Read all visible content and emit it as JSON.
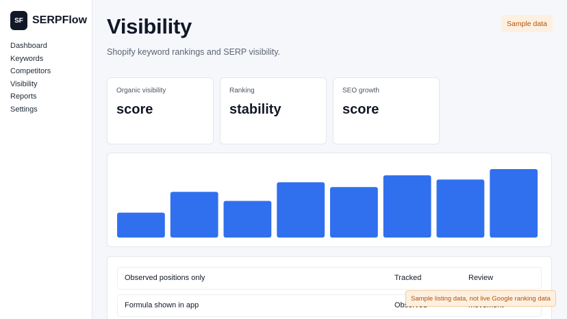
{
  "brand": {
    "logo_text": "SF",
    "name": "SERPFlow"
  },
  "sidebar": {
    "items": [
      {
        "label": "Dashboard"
      },
      {
        "label": "Keywords"
      },
      {
        "label": "Competitors"
      },
      {
        "label": "Visibility"
      },
      {
        "label": "Reports"
      },
      {
        "label": "Settings"
      }
    ]
  },
  "header": {
    "title": "Visibility",
    "subtitle": "Shopify keyword rankings and SERP visibility.",
    "badge": "Sample data"
  },
  "kpis": [
    {
      "label": "Organic visibility",
      "value": "score"
    },
    {
      "label": "Ranking",
      "value": "stability"
    },
    {
      "label": "SEO growth",
      "value": "score"
    }
  ],
  "chart_data": {
    "type": "bar",
    "values": [
      36,
      66,
      53,
      80,
      73,
      90,
      84,
      99
    ],
    "ylim": [
      0,
      100
    ],
    "grid": false,
    "color": "#3070ee"
  },
  "table": {
    "rows": [
      {
        "name": "Observed positions only",
        "col2": "Tracked",
        "col3": "Review"
      },
      {
        "name": "Formula shown in app",
        "col2": "Observed",
        "col3": "movement"
      }
    ]
  },
  "toast": "Sample listing data, not live Google ranking data"
}
